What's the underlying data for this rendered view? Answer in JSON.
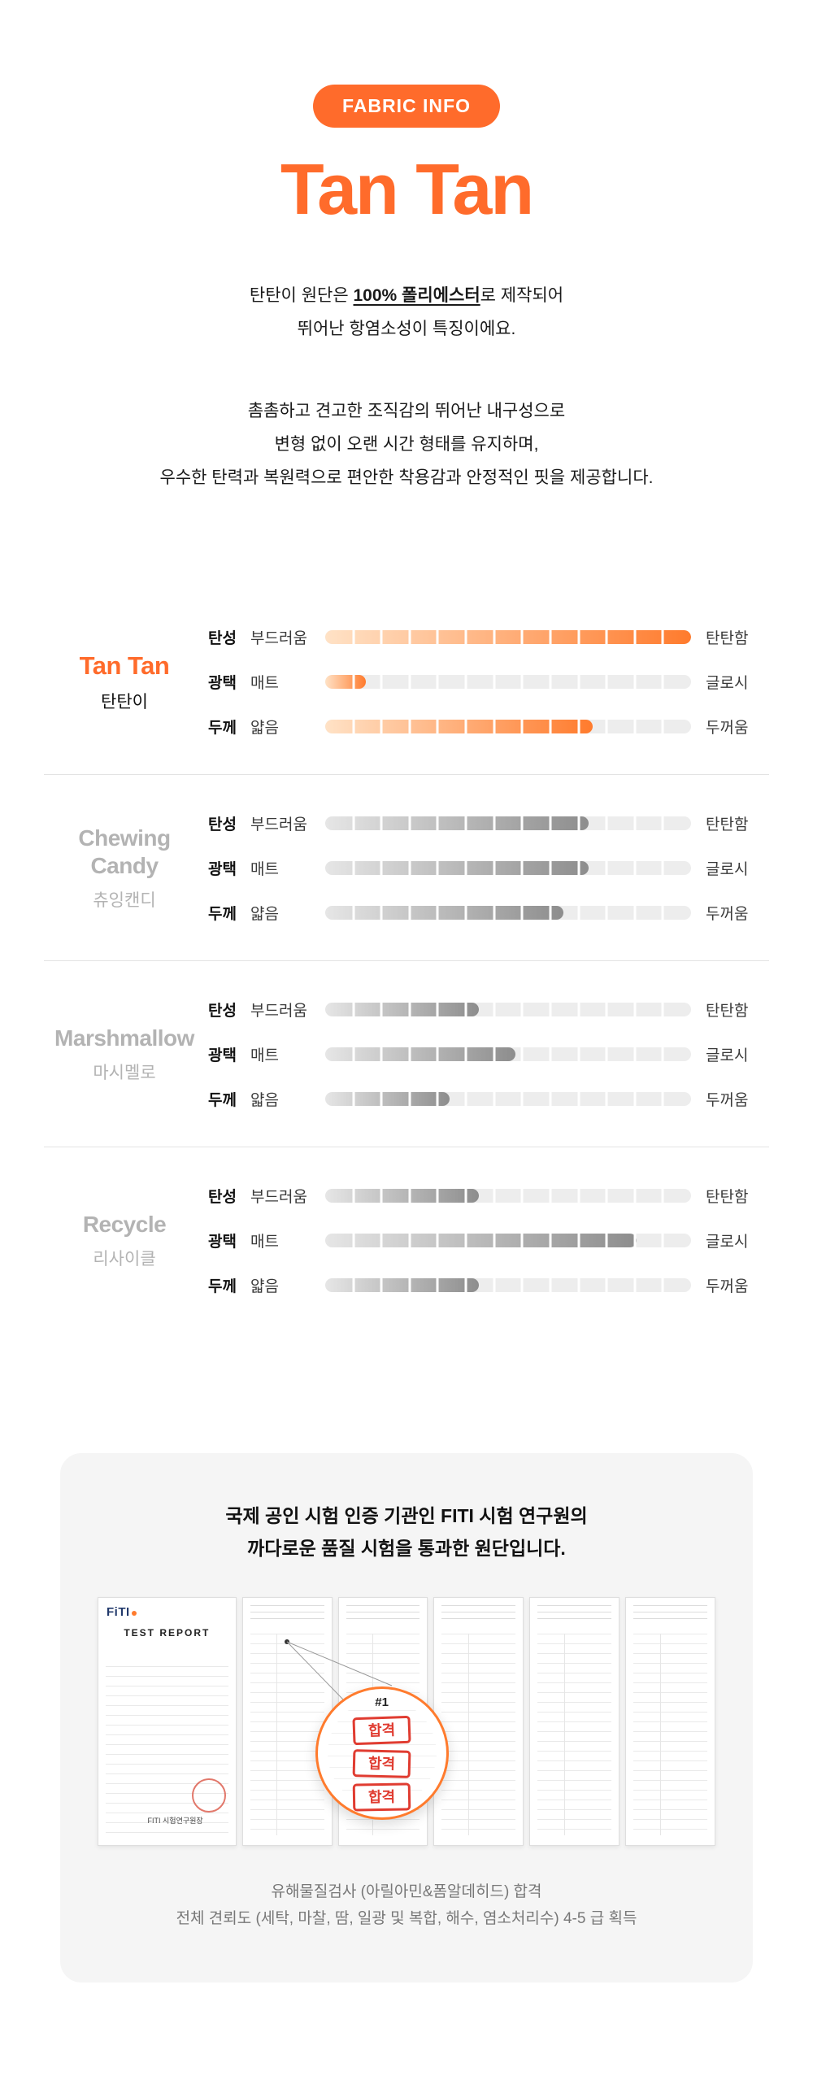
{
  "badge": "FABRIC INFO",
  "title": "Tan Tan",
  "intro": {
    "line1_pre": "탄탄이 원단은 ",
    "line1_bold": "100% 폴리에스터",
    "line1_post": "로 제작되어",
    "line2": "뛰어난 항염소성이 특징이에요."
  },
  "description": {
    "lines": [
      "촘촘하고 견고한 조직감의 뛰어난 내구성으로",
      "변형 없이 오랜 시간 형태를 유지하며,",
      "우수한 탄력과 복원력으로 편안한 착용감과 안정적인 핏을 제공합니다."
    ]
  },
  "compare": {
    "segments": 13,
    "fabrics": [
      {
        "name": "Tan Tan",
        "korean": "탄탄이",
        "highlight": true,
        "rows": [
          {
            "key": "elasticity",
            "label": "탄성",
            "left": "부드러움",
            "right": "탄탄함",
            "value": 100
          },
          {
            "key": "gloss",
            "label": "광택",
            "left": "매트",
            "right": "글로시",
            "value": 11
          },
          {
            "key": "thickness",
            "label": "두께",
            "left": "얇음",
            "right": "두꺼움",
            "value": 73
          }
        ]
      },
      {
        "name": "Chewing Candy",
        "korean": "츄잉캔디",
        "highlight": false,
        "rows": [
          {
            "key": "elasticity",
            "label": "탄성",
            "left": "부드러움",
            "right": "탄탄함",
            "value": 72
          },
          {
            "key": "gloss",
            "label": "광택",
            "left": "매트",
            "right": "글로시",
            "value": 72
          },
          {
            "key": "thickness",
            "label": "두께",
            "left": "얇음",
            "right": "두꺼움",
            "value": 65
          }
        ]
      },
      {
        "name": "Marshmallow",
        "korean": "마시멜로",
        "highlight": false,
        "rows": [
          {
            "key": "elasticity",
            "label": "탄성",
            "left": "부드러움",
            "right": "탄탄함",
            "value": 42
          },
          {
            "key": "gloss",
            "label": "광택",
            "left": "매트",
            "right": "글로시",
            "value": 52
          },
          {
            "key": "thickness",
            "label": "두께",
            "left": "얇음",
            "right": "두꺼움",
            "value": 34
          }
        ]
      },
      {
        "name": "Recycle",
        "korean": "리사이클",
        "highlight": false,
        "rows": [
          {
            "key": "elasticity",
            "label": "탄성",
            "left": "부드러움",
            "right": "탄탄함",
            "value": 42
          },
          {
            "key": "gloss",
            "label": "광택",
            "left": "매트",
            "right": "글로시",
            "value": 85
          },
          {
            "key": "thickness",
            "label": "두께",
            "left": "얇음",
            "right": "두꺼움",
            "value": 42
          }
        ]
      }
    ]
  },
  "certificate": {
    "heading_lines": [
      "국제 공인 시험 인증 기관인 FITI 시험 연구원의",
      "까다로운 품질 시험을 통과한 원단입니다."
    ],
    "report": {
      "logo": "FiTI",
      "title": "TEST REPORT",
      "org": "FITI 시험연구원장",
      "stamp_label": "#1",
      "pass_stamps": [
        "합격",
        "합격",
        "합격"
      ]
    },
    "caption_lines": [
      "유해물질검사 (아릴아민&폼알데히드) 합격",
      "전체 견뢰도 (세탁, 마찰, 땀, 일광 및 복합, 해수, 염소처리수) 4-5 급 획득"
    ]
  },
  "colors": {
    "accent": "#FF6B2B",
    "bar_track": "#EDEDED",
    "bar_orange_gradient": [
      "#FFE2C6",
      "#FF7B2D"
    ],
    "bar_gray_gradient": [
      "#E6E6E6",
      "#8D8D8D"
    ],
    "muted_name": "#B3B3B3",
    "card_background": "#F5F5F5",
    "pass_red": "#E03C31",
    "caption_gray": "#777777"
  }
}
